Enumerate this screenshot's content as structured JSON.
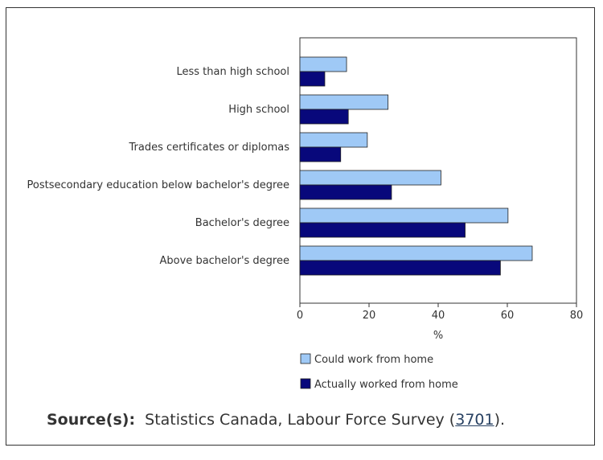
{
  "chart_data": {
    "type": "bar",
    "orientation": "horizontal",
    "categories": [
      "Less than high school",
      "High school",
      "Trades certificates or diplomas",
      "Postsecondary education below bachelor's degree",
      "Bachelor's degree",
      "Above bachelor's degree"
    ],
    "series": [
      {
        "name": "Could work from home",
        "color": "#9fc9f6",
        "values": [
          13.5,
          25.5,
          19.5,
          40.8,
          60.2,
          67.2
        ]
      },
      {
        "name": "Actually worked from home",
        "color": "#08087b",
        "values": [
          7.2,
          14.0,
          11.8,
          26.5,
          47.8,
          58.0
        ]
      }
    ],
    "xlabel": "%",
    "xlim": [
      0,
      80
    ],
    "xticks": [
      "0",
      "20",
      "40",
      "60",
      "80"
    ],
    "grid": false,
    "legend_position": "bottom"
  },
  "source": {
    "label": "Source(s):",
    "text": "Statistics Canada, Labour Force Survey (",
    "link": "3701",
    "suffix": ")."
  }
}
